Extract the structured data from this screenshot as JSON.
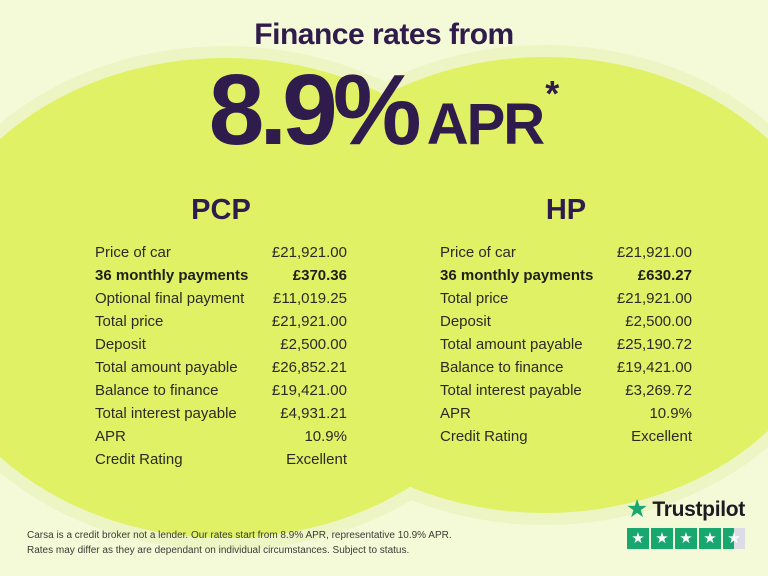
{
  "header": {
    "title": "Finance rates from",
    "rate": "8.9%",
    "apr_label": "APR",
    "asterisk": "*"
  },
  "pcp": {
    "title": "PCP",
    "rows": [
      {
        "label": "Price of car",
        "value": "£21,921.00"
      },
      {
        "label": "36 monthly payments",
        "value": "£370.36",
        "bold": true
      },
      {
        "label": "Optional final payment",
        "value": "£11,019.25"
      },
      {
        "label": "Total price",
        "value": "£21,921.00"
      },
      {
        "label": "Deposit",
        "value": "£2,500.00"
      },
      {
        "label": "Total amount payable",
        "value": "£26,852.21"
      },
      {
        "label": "Balance to finance",
        "value": "£19,421.00"
      },
      {
        "label": "Total interest payable",
        "value": "£4,931.21"
      },
      {
        "label": "APR",
        "value": "10.9%"
      },
      {
        "label": "Credit Rating",
        "value": "Excellent"
      }
    ]
  },
  "hp": {
    "title": "HP",
    "rows": [
      {
        "label": "Price of car",
        "value": "£21,921.00"
      },
      {
        "label": "36 monthly payments",
        "value": "£630.27",
        "bold": true
      },
      {
        "label": "Total price",
        "value": "£21,921.00"
      },
      {
        "label": "Deposit",
        "value": "£2,500.00"
      },
      {
        "label": "Total amount payable",
        "value": "£25,190.72"
      },
      {
        "label": "Balance to finance",
        "value": "£19,421.00"
      },
      {
        "label": "Total interest payable",
        "value": "£3,269.72"
      },
      {
        "label": "APR",
        "value": "10.9%"
      },
      {
        "label": "Credit Rating",
        "value": "Excellent"
      }
    ]
  },
  "disclaimer": {
    "line1": "Carsa is a credit broker not a lender. Our rates start from 8.9% APR, representative 10.9% APR.",
    "line2": "Rates may differ as they are dependant on individual circumstances. Subject to status."
  },
  "trustpilot": {
    "brand": "Trustpilot",
    "rating": "4.5",
    "star_char": "★",
    "stars": [
      {
        "fill": "full"
      },
      {
        "fill": "full"
      },
      {
        "fill": "full"
      },
      {
        "fill": "full"
      },
      {
        "fill": "half"
      }
    ]
  },
  "colors": {
    "background_pale": "#F4F9D7",
    "background_mid": "#EEF5C4",
    "background_bright": "#E0F166",
    "heading_purple": "#2F1B4C",
    "table_text": "#2B2A24",
    "trustpilot_green": "#18A76E",
    "star_empty": "#DCDCE6"
  }
}
